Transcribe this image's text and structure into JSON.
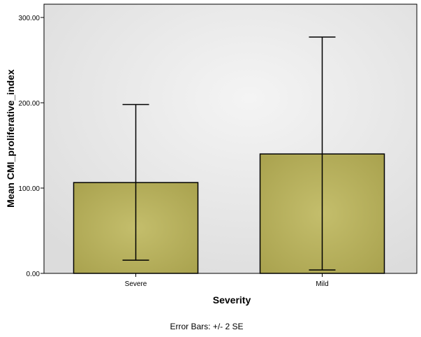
{
  "chart_data": {
    "type": "bar",
    "categories": [
      "Severe",
      "Mild"
    ],
    "values": [
      106.5,
      140.0
    ],
    "error_bars": {
      "lower": [
        15.5,
        4.0
      ],
      "upper": [
        198.0,
        277.0
      ]
    },
    "xlabel": "Severity",
    "ylabel": "Mean CMI_proliferative_index",
    "ylim": [
      0,
      300
    ],
    "yticks": [
      "0.00",
      "100.00",
      "200.00",
      "300.00"
    ],
    "footnote": "Error Bars: +/- 2 SE",
    "grid": false,
    "colors": {
      "bar_fill": "#BDB661",
      "bar_edge": "#C4BE6C",
      "bar_stroke": "#000000",
      "plot_bg": "#E6E6E6",
      "error_bar": "#000000"
    }
  }
}
